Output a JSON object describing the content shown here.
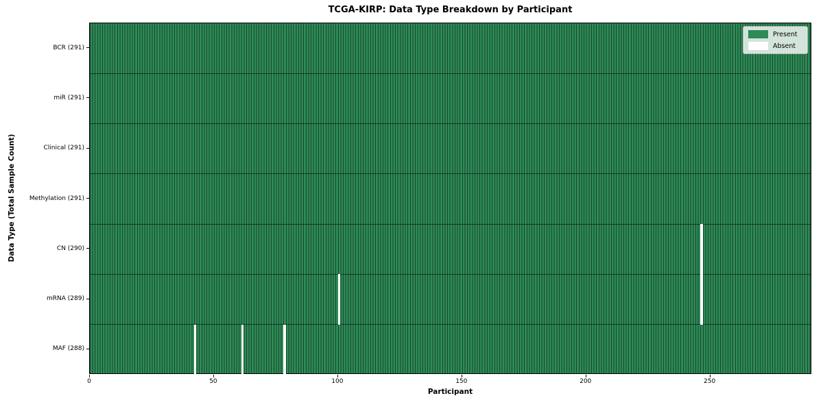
{
  "figure": {
    "title": "TCGA-KIRP: Data Type Breakdown by Participant",
    "xlabel": "Participant",
    "ylabel": "Data Type (Total Sample Count)"
  },
  "legend": {
    "items": [
      {
        "label": "Present",
        "color": "#2e8b57"
      },
      {
        "label": "Absent",
        "color": "#ffffff"
      }
    ]
  },
  "chart_data": {
    "type": "heatmap",
    "title": "TCGA-KIRP: Data Type Breakdown by Participant",
    "xlabel": "Participant",
    "ylabel": "Data Type (Total Sample Count)",
    "n_participants": 291,
    "x_range": [
      0,
      291
    ],
    "x_ticks": [
      0,
      50,
      100,
      150,
      200,
      250
    ],
    "grid": false,
    "legend_position": "upper right",
    "legend": [
      {
        "label": "Present",
        "color": "#2e8b57"
      },
      {
        "label": "Absent",
        "color": "#ffffff"
      }
    ],
    "colors": {
      "present": "#2e8b57",
      "absent": "#ffffff",
      "cell_edge": "rgba(0,0,0,0.5)",
      "row_separator": "rgba(0,0,0,0.55)"
    },
    "rows": [
      {
        "label": "BCR",
        "total": 291,
        "tick_label": "BCR (291)",
        "absent_participants": []
      },
      {
        "label": "miR",
        "total": 291,
        "tick_label": "miR (291)",
        "absent_participants": []
      },
      {
        "label": "Clinical",
        "total": 291,
        "tick_label": "Clinical (291)",
        "absent_participants": []
      },
      {
        "label": "Methylation",
        "total": 291,
        "tick_label": "Methylation (291)",
        "absent_participants": []
      },
      {
        "label": "CN",
        "total": 290,
        "tick_label": "CN (290)",
        "absent_participants": [
          246
        ]
      },
      {
        "label": "mRNA",
        "total": 289,
        "tick_label": "mRNA (289)",
        "absent_participants": [
          100,
          246
        ]
      },
      {
        "label": "MAF",
        "total": 288,
        "tick_label": "MAF (288)",
        "absent_participants": [
          42,
          61,
          78
        ]
      }
    ]
  }
}
